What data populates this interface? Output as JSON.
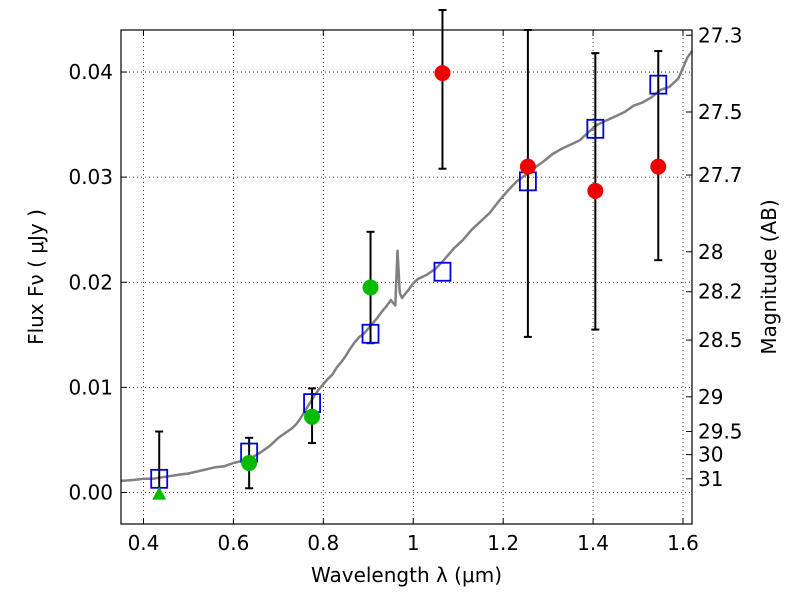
{
  "chart_data": {
    "type": "scatter",
    "title": "",
    "xlabel": "Wavelength  λ (μm)",
    "ylabel": "Flux  Fν  ( μJy )",
    "y2label": "Magnitude (AB)",
    "xlim": [
      0.35,
      1.62
    ],
    "ylim": [
      -0.003,
      0.044
    ],
    "grid": true,
    "x_ticks": [
      0.4,
      0.6,
      0.8,
      1.0,
      1.2,
      1.4,
      1.6
    ],
    "x_tick_labels": [
      "0.4",
      "0.6",
      "0.8",
      "1",
      "1.2",
      "1.4",
      "1.6"
    ],
    "y_ticks": [
      0.0,
      0.01,
      0.02,
      0.03,
      0.04
    ],
    "y_tick_labels": [
      "0.00",
      "0.01",
      "0.02",
      "0.03",
      "0.04"
    ],
    "y2_ticks": [
      {
        "label": "27.3",
        "flux": 0.0435
      },
      {
        "label": "27.5",
        "flux": 0.0362
      },
      {
        "label": "27.7",
        "flux": 0.0302
      },
      {
        "label": "28",
        "flux": 0.0229
      },
      {
        "label": "28.2",
        "flux": 0.0191
      },
      {
        "label": "28.5",
        "flux": 0.0145
      },
      {
        "label": "29",
        "flux": 0.0091
      },
      {
        "label": "29.5",
        "flux": 0.0058
      },
      {
        "label": "30",
        "flux": 0.0036
      },
      {
        "label": "31",
        "flux": 0.0013
      }
    ],
    "model_spectrum": {
      "color": "#808080",
      "x": [
        0.35,
        0.38,
        0.4,
        0.42,
        0.45,
        0.48,
        0.5,
        0.53,
        0.56,
        0.58,
        0.6,
        0.62,
        0.64,
        0.66,
        0.68,
        0.7,
        0.72,
        0.73,
        0.74,
        0.75,
        0.76,
        0.77,
        0.78,
        0.79,
        0.8,
        0.81,
        0.82,
        0.83,
        0.84,
        0.85,
        0.86,
        0.87,
        0.88,
        0.89,
        0.9,
        0.91,
        0.92,
        0.93,
        0.94,
        0.95,
        0.96,
        0.965,
        0.97,
        0.975,
        0.98,
        0.99,
        1.0,
        1.01,
        1.02,
        1.03,
        1.05,
        1.07,
        1.09,
        1.11,
        1.13,
        1.15,
        1.17,
        1.19,
        1.21,
        1.23,
        1.25,
        1.27,
        1.29,
        1.31,
        1.33,
        1.35,
        1.37,
        1.39,
        1.41,
        1.43,
        1.45,
        1.47,
        1.49,
        1.51,
        1.53,
        1.55,
        1.57,
        1.59,
        1.61,
        1.62
      ],
      "y": [
        0.0011,
        0.0012,
        0.0013,
        0.0013,
        0.0015,
        0.0017,
        0.0018,
        0.0021,
        0.0024,
        0.0025,
        0.0028,
        0.003,
        0.0033,
        0.0038,
        0.0044,
        0.0052,
        0.0058,
        0.0061,
        0.0065,
        0.0071,
        0.0078,
        0.0085,
        0.0092,
        0.0098,
        0.0103,
        0.0108,
        0.0112,
        0.0119,
        0.0124,
        0.013,
        0.0137,
        0.0143,
        0.0148,
        0.0151,
        0.0156,
        0.0161,
        0.0166,
        0.0172,
        0.0177,
        0.0183,
        0.0178,
        0.023,
        0.019,
        0.0185,
        0.0188,
        0.0193,
        0.0199,
        0.0203,
        0.0205,
        0.0207,
        0.0213,
        0.0222,
        0.0232,
        0.024,
        0.025,
        0.0258,
        0.0266,
        0.0277,
        0.0287,
        0.0296,
        0.0302,
        0.0309,
        0.0315,
        0.0322,
        0.0327,
        0.0331,
        0.0335,
        0.0343,
        0.035,
        0.0354,
        0.0358,
        0.0362,
        0.0368,
        0.0371,
        0.0376,
        0.0383,
        0.0386,
        0.0394,
        0.0414,
        0.042
      ]
    },
    "series": [
      {
        "marker": "square",
        "color": "#0000dd",
        "x": [
          0.435,
          0.635,
          0.775,
          0.905,
          1.065,
          1.255,
          1.405,
          1.545
        ],
        "y": [
          0.0013,
          0.0038,
          0.0085,
          0.0151,
          0.021,
          0.0296,
          0.0346,
          0.0388
        ]
      },
      {
        "marker": "circle",
        "color": "#00bb00",
        "x": [
          0.635,
          0.775,
          0.905
        ],
        "y": [
          0.0028,
          0.0072,
          0.0195
        ],
        "yerr_low": [
          0.0024,
          0.0025,
          0.0053
        ],
        "yerr_high": [
          0.0024,
          0.0027,
          0.0053
        ]
      },
      {
        "marker": "triangle",
        "color": "#00bb00",
        "x": [
          0.435
        ],
        "y": [
          -0.0002
        ],
        "yerr_low": [
          0.0
        ],
        "yerr_high": [
          0.006
        ]
      },
      {
        "marker": "circle",
        "color": "#ee0000",
        "x": [
          1.065,
          1.255,
          1.405,
          1.545
        ],
        "y": [
          0.0399,
          0.031,
          0.0287,
          0.031
        ],
        "yerr_low": [
          0.0091,
          0.0162,
          0.0132,
          0.0089
        ],
        "yerr_high": [
          0.006,
          0.013,
          0.0131,
          0.011
        ]
      }
    ]
  }
}
